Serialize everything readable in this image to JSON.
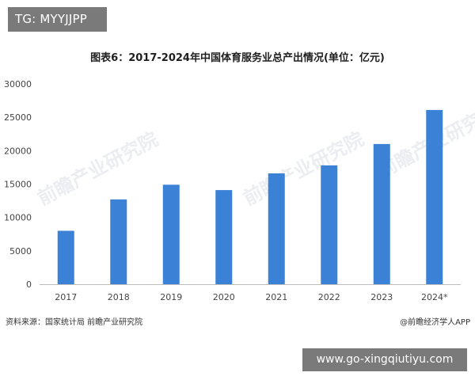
{
  "tag_badge": "TG: MYYJJPP",
  "url_badge": "www.go-xingqiutiyu.com",
  "footer": {
    "source": "资料来源：国家统计局 前瞻产业研究院",
    "credit": "@前瞻经济学人APP"
  },
  "chart_data": {
    "type": "bar",
    "title": "图表6：2017-2024年中国体育服务业总产出情况(单位：亿元)",
    "xlabel": "",
    "ylabel": "",
    "categories": [
      "2017",
      "2018",
      "2019",
      "2020",
      "2021",
      "2022",
      "2023",
      "2024*"
    ],
    "values": [
      8000,
      12700,
      14900,
      14100,
      16600,
      17800,
      21000,
      26100
    ],
    "ylim": [
      0,
      30000
    ],
    "yticks": [
      0,
      5000,
      10000,
      15000,
      20000,
      25000,
      30000
    ],
    "bar_color": "#3b82d6",
    "grid": false
  }
}
